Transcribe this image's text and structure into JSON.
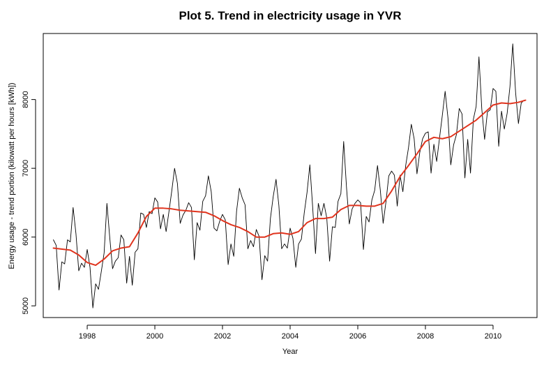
{
  "chart_data": {
    "type": "line",
    "title": "Plot 5. Trend in electricity usage in YVR",
    "xlabel": "Year",
    "ylabel": "Energy usage - trend portion (kilowatt per hours [kWh])",
    "xlim": [
      1996.7,
      2011.3
    ],
    "ylim": [
      4830,
      8960
    ],
    "x_ticks": [
      1998,
      2000,
      2002,
      2004,
      2006,
      2008,
      2010
    ],
    "y_ticks": [
      5000,
      6000,
      7000,
      8000
    ],
    "grid": false,
    "colors": {
      "raw": "#000000",
      "trend": "#e0341e"
    },
    "series": [
      {
        "kind": "raw",
        "x": [
          1997.0,
          1997.083,
          1997.167,
          1997.25,
          1997.333,
          1997.417,
          1997.5,
          1997.583,
          1997.667,
          1997.75,
          1997.833,
          1997.917,
          1998.0,
          1998.083,
          1998.167,
          1998.25,
          1998.333,
          1998.417,
          1998.5,
          1998.583,
          1998.667,
          1998.75,
          1998.833,
          1998.917,
          1999.0,
          1999.083,
          1999.167,
          1999.25,
          1999.333,
          1999.417,
          1999.5,
          1999.583,
          1999.667,
          1999.75,
          1999.833,
          1999.917,
          2000.0,
          2000.083,
          2000.167,
          2000.25,
          2000.333,
          2000.417,
          2000.5,
          2000.583,
          2000.667,
          2000.75,
          2000.833,
          2000.917,
          2001.0,
          2001.083,
          2001.167,
          2001.25,
          2001.333,
          2001.417,
          2001.5,
          2001.583,
          2001.667,
          2001.75,
          2001.833,
          2001.917,
          2002.0,
          2002.083,
          2002.167,
          2002.25,
          2002.333,
          2002.417,
          2002.5,
          2002.583,
          2002.667,
          2002.75,
          2002.833,
          2002.917,
          2003.0,
          2003.083,
          2003.167,
          2003.25,
          2003.333,
          2003.417,
          2003.5,
          2003.583,
          2003.667,
          2003.75,
          2003.833,
          2003.917,
          2004.0,
          2004.083,
          2004.167,
          2004.25,
          2004.333,
          2004.417,
          2004.5,
          2004.583,
          2004.667,
          2004.75,
          2004.833,
          2004.917,
          2005.0,
          2005.083,
          2005.167,
          2005.25,
          2005.333,
          2005.417,
          2005.5,
          2005.583,
          2005.667,
          2005.75,
          2005.833,
          2005.917,
          2006.0,
          2006.083,
          2006.167,
          2006.25,
          2006.333,
          2006.417,
          2006.5,
          2006.583,
          2006.667,
          2006.75,
          2006.833,
          2006.917,
          2007.0,
          2007.083,
          2007.167,
          2007.25,
          2007.333,
          2007.417,
          2007.5,
          2007.583,
          2007.667,
          2007.75,
          2007.833,
          2007.917,
          2008.0,
          2008.083,
          2008.167,
          2008.25,
          2008.333,
          2008.417,
          2008.5,
          2008.583,
          2008.667,
          2008.75,
          2008.833,
          2008.917,
          2009.0,
          2009.083,
          2009.167,
          2009.25,
          2009.333,
          2009.417,
          2009.5,
          2009.583,
          2009.667,
          2009.75,
          2009.833,
          2009.917,
          2010.0,
          2010.083,
          2010.167,
          2010.25,
          2010.333,
          2010.417,
          2010.5,
          2010.583,
          2010.667,
          2010.75,
          2010.833,
          2010.917
        ],
        "y": [
          5960,
          5880,
          5230,
          5640,
          5610,
          5960,
          5930,
          6430,
          6050,
          5510,
          5620,
          5560,
          5820,
          5560,
          4970,
          5320,
          5240,
          5500,
          5770,
          6490,
          5990,
          5540,
          5650,
          5700,
          6030,
          5960,
          5330,
          5720,
          5300,
          5780,
          5830,
          6350,
          6330,
          6140,
          6370,
          6340,
          6570,
          6510,
          6120,
          6330,
          6080,
          6370,
          6670,
          7000,
          6780,
          6200,
          6320,
          6390,
          6500,
          6430,
          5670,
          6210,
          6100,
          6520,
          6600,
          6890,
          6660,
          6130,
          6090,
          6230,
          6330,
          6250,
          5600,
          5900,
          5720,
          6380,
          6710,
          6570,
          6470,
          5830,
          5950,
          5860,
          6110,
          6010,
          5380,
          5730,
          5650,
          6270,
          6590,
          6840,
          6460,
          5830,
          5900,
          5840,
          6130,
          5980,
          5560,
          5900,
          5970,
          6350,
          6650,
          7050,
          6430,
          5760,
          6490,
          6310,
          6490,
          6280,
          5650,
          6150,
          6140,
          6520,
          6630,
          7390,
          6720,
          6190,
          6410,
          6490,
          6540,
          6500,
          5820,
          6300,
          6220,
          6540,
          6680,
          7040,
          6680,
          6200,
          6510,
          6890,
          6960,
          6900,
          6450,
          6900,
          6660,
          7040,
          7300,
          7640,
          7430,
          6920,
          7230,
          7430,
          7510,
          7530,
          6930,
          7350,
          7100,
          7440,
          7770,
          8120,
          7730,
          7050,
          7340,
          7490,
          7870,
          7790,
          6860,
          7420,
          6930,
          7710,
          7900,
          8620,
          7860,
          7420,
          7820,
          7850,
          8160,
          8120,
          7320,
          7830,
          7570,
          7800,
          8190,
          8810,
          8100,
          7650,
          7950,
          7990
        ]
      },
      {
        "kind": "trend",
        "x": [
          1997.0,
          1997.5,
          1997.75,
          1998.0,
          1998.25,
          1998.5,
          1998.75,
          1999.0,
          1999.25,
          1999.5,
          1999.75,
          2000.0,
          2000.25,
          2000.5,
          2000.75,
          2001.0,
          2001.25,
          2001.5,
          2001.75,
          2002.0,
          2002.25,
          2002.5,
          2002.75,
          2003.0,
          2003.25,
          2003.5,
          2003.75,
          2004.0,
          2004.25,
          2004.5,
          2004.75,
          2005.0,
          2005.25,
          2005.5,
          2005.75,
          2006.0,
          2006.25,
          2006.5,
          2006.75,
          2007.0,
          2007.25,
          2007.5,
          2007.75,
          2008.0,
          2008.25,
          2008.5,
          2008.75,
          2009.0,
          2009.25,
          2009.5,
          2009.75,
          2010.0,
          2010.25,
          2010.5,
          2010.75,
          2010.96
        ],
        "y": [
          5840,
          5810,
          5740,
          5630,
          5590,
          5680,
          5800,
          5840,
          5860,
          6060,
          6300,
          6420,
          6420,
          6410,
          6390,
          6380,
          6370,
          6360,
          6310,
          6240,
          6180,
          6140,
          6080,
          6000,
          6000,
          6050,
          6060,
          6040,
          6080,
          6210,
          6270,
          6270,
          6290,
          6400,
          6460,
          6460,
          6450,
          6450,
          6490,
          6670,
          6880,
          7040,
          7210,
          7390,
          7450,
          7430,
          7460,
          7540,
          7620,
          7700,
          7810,
          7920,
          7950,
          7940,
          7960,
          7990
        ]
      }
    ]
  }
}
